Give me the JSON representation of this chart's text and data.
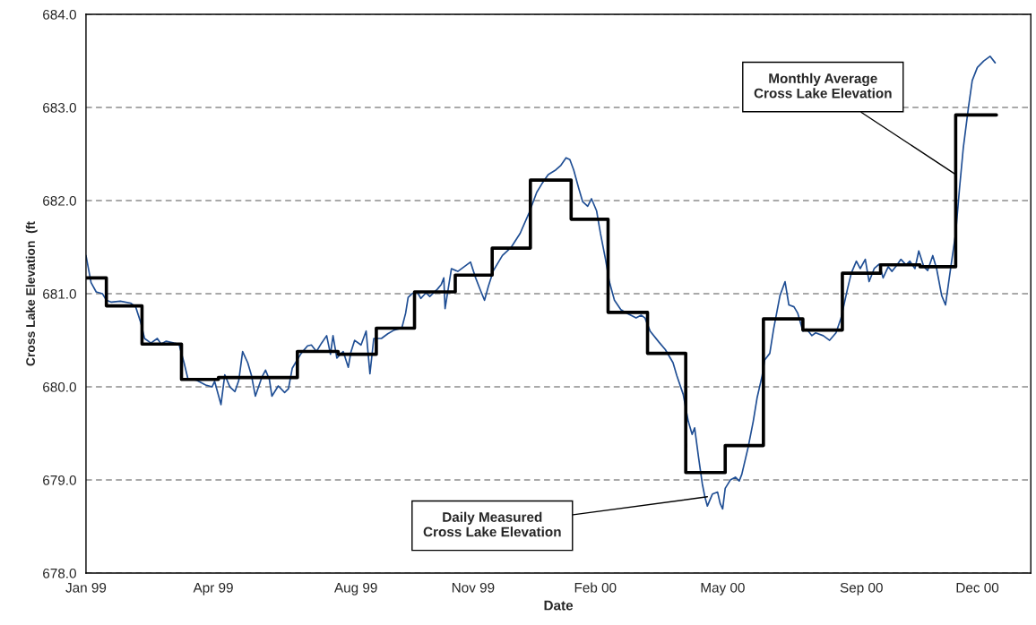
{
  "chart_data": {
    "type": "line",
    "xlabel": "Date",
    "ylabel": "Cross Lake Elevation  (ft",
    "xlim": [
      "1999-01-01",
      "2001-01-12"
    ],
    "ylim": [
      678.0,
      684.0
    ],
    "xticks": [
      {
        "value": "1999-01-01",
        "label": "Jan 99"
      },
      {
        "value": "1999-04-11",
        "label": "Apr 99"
      },
      {
        "value": "1999-08-01",
        "label": "Aug 99"
      },
      {
        "value": "1999-11-01",
        "label": "Nov 99"
      },
      {
        "value": "2000-02-05",
        "label": "Feb 00"
      },
      {
        "value": "2000-05-15",
        "label": "May 00"
      },
      {
        "value": "2000-09-01",
        "label": "Sep 00"
      },
      {
        "value": "2000-12-01",
        "label": "Dec 00"
      }
    ],
    "yticks": [
      {
        "value": 678,
        "label": "678.0"
      },
      {
        "value": 679,
        "label": "679.0"
      },
      {
        "value": 680,
        "label": "680.0"
      },
      {
        "value": 681,
        "label": "681.0"
      },
      {
        "value": 682,
        "label": "682.0"
      },
      {
        "value": 683,
        "label": "683.0"
      },
      {
        "value": 684,
        "label": "684.0"
      }
    ],
    "grid": "y",
    "legend": false,
    "marker": "none",
    "series": [
      {
        "color": "#1f4e94",
        "line_style": "solid",
        "x": [
          "1999-01-01",
          "1999-01-05",
          "1999-01-09",
          "1999-01-14",
          "1999-01-17",
          "1999-01-21",
          "1999-01-28",
          "1999-02-05",
          "1999-02-09",
          "1999-02-13",
          "1999-02-16",
          "1999-02-21",
          "1999-02-26",
          "1999-03-01",
          "1999-03-05",
          "1999-03-11",
          "1999-03-15",
          "1999-03-19",
          "1999-03-22",
          "1999-03-29",
          "1999-04-05",
          "1999-04-10",
          "1999-04-12",
          "1999-04-17",
          "1999-04-20",
          "1999-04-24",
          "1999-04-28",
          "1999-05-01",
          "1999-05-04",
          "1999-05-08",
          "1999-05-11",
          "1999-05-14",
          "1999-05-19",
          "1999-05-22",
          "1999-05-25",
          "1999-05-27",
          "1999-06-01",
          "1999-06-06",
          "1999-06-09",
          "1999-06-12",
          "1999-06-15",
          "1999-06-19",
          "1999-06-24",
          "1999-06-27",
          "1999-07-01",
          "1999-07-05",
          "1999-07-09",
          "1999-07-12",
          "1999-07-14",
          "1999-07-17",
          "1999-07-22",
          "1999-07-26",
          "1999-07-28",
          "1999-07-31",
          "1999-08-05",
          "1999-08-09",
          "1999-08-12",
          "1999-08-15",
          "1999-08-21",
          "1999-08-26",
          "1999-08-31",
          "1999-09-06",
          "1999-09-09",
          "1999-09-11",
          "1999-09-14",
          "1999-09-18",
          "1999-09-21",
          "1999-09-25",
          "1999-09-28",
          "1999-10-04",
          "1999-10-07",
          "1999-10-09",
          "1999-10-10",
          "1999-10-15",
          "1999-10-20",
          "1999-10-25",
          "1999-10-30",
          "1999-11-03",
          "1999-11-07",
          "1999-11-10",
          "1999-11-13",
          "1999-11-17",
          "1999-11-24",
          "1999-12-01",
          "1999-12-08",
          "1999-12-15",
          "1999-12-21",
          "1999-12-25",
          "1999-12-30",
          "2000-01-05",
          "2000-01-09",
          "2000-01-13",
          "2000-01-16",
          "2000-01-19",
          "2000-01-23",
          "2000-01-26",
          "2000-01-30",
          "2000-02-02",
          "2000-02-06",
          "2000-02-09",
          "2000-02-13",
          "2000-02-16",
          "2000-02-20",
          "2000-02-25",
          "2000-03-01",
          "2000-03-08",
          "2000-03-12",
          "2000-03-15",
          "2000-03-19",
          "2000-03-26",
          "2000-03-31",
          "2000-04-06",
          "2000-04-09",
          "2000-04-14",
          "2000-04-18",
          "2000-04-21",
          "2000-04-23",
          "2000-04-26",
          "2000-04-29",
          "2000-05-01",
          "2000-05-03",
          "2000-05-07",
          "2000-05-11",
          "2000-05-13",
          "2000-05-15",
          "2000-05-17",
          "2000-05-21",
          "2000-05-25",
          "2000-05-28",
          "2000-05-30",
          "2000-06-04",
          "2000-06-08",
          "2000-06-11",
          "2000-06-15",
          "2000-06-17",
          "2000-06-21",
          "2000-06-24",
          "2000-06-29",
          "2000-07-03",
          "2000-07-06",
          "2000-07-10",
          "2000-07-13",
          "2000-07-17",
          "2000-07-20",
          "2000-07-24",
          "2000-07-27",
          "2000-08-02",
          "2000-08-07",
          "2000-08-12",
          "2000-08-16",
          "2000-08-21",
          "2000-08-24",
          "2000-08-28",
          "2000-08-31",
          "2000-09-04",
          "2000-09-07",
          "2000-09-11",
          "2000-09-15",
          "2000-09-18",
          "2000-09-22",
          "2000-09-25",
          "2000-09-29",
          "2000-10-02",
          "2000-10-06",
          "2000-10-09",
          "2000-10-13",
          "2000-10-16",
          "2000-10-20",
          "2000-10-23",
          "2000-10-27",
          "2000-10-30",
          "2000-11-03",
          "2000-11-06",
          "2000-11-10",
          "2000-11-14",
          "2000-11-17",
          "2000-11-20",
          "2000-11-24",
          "2000-11-27",
          "2000-12-01",
          "2000-12-06",
          "2000-12-11",
          "2000-12-15"
        ],
        "values": [
          681.41,
          681.12,
          681.02,
          681.0,
          680.93,
          680.91,
          680.92,
          680.9,
          680.86,
          680.69,
          680.52,
          680.47,
          680.52,
          680.46,
          680.49,
          680.47,
          680.46,
          680.26,
          680.09,
          680.07,
          680.02,
          680.0,
          680.06,
          679.81,
          680.13,
          680.0,
          679.95,
          680.07,
          680.38,
          680.26,
          680.12,
          679.9,
          680.1,
          680.18,
          680.08,
          679.9,
          680.01,
          679.94,
          679.98,
          680.2,
          680.27,
          680.36,
          680.44,
          680.45,
          680.38,
          680.47,
          680.55,
          680.35,
          680.55,
          680.31,
          680.38,
          680.21,
          680.37,
          680.5,
          680.45,
          680.6,
          680.14,
          680.52,
          680.52,
          680.57,
          680.61,
          680.63,
          680.79,
          680.96,
          681.0,
          681.02,
          680.95,
          681.01,
          680.97,
          681.05,
          681.1,
          681.17,
          680.84,
          681.27,
          681.24,
          681.29,
          681.34,
          681.17,
          681.03,
          680.93,
          681.08,
          681.25,
          681.41,
          681.5,
          681.65,
          681.87,
          682.09,
          682.18,
          682.28,
          682.33,
          682.38,
          682.46,
          682.44,
          682.33,
          682.13,
          681.99,
          681.94,
          682.02,
          681.89,
          681.65,
          681.37,
          681.13,
          680.93,
          680.83,
          680.79,
          680.74,
          680.77,
          680.74,
          680.6,
          680.48,
          680.4,
          680.26,
          680.12,
          679.92,
          679.63,
          679.49,
          679.56,
          679.25,
          678.96,
          678.82,
          678.72,
          678.85,
          678.87,
          678.75,
          678.69,
          678.91,
          679.0,
          679.03,
          678.99,
          679.06,
          679.35,
          679.63,
          679.88,
          680.12,
          680.29,
          680.36,
          680.62,
          680.98,
          681.13,
          680.88,
          680.86,
          680.79,
          680.6,
          680.62,
          680.55,
          680.58,
          680.55,
          680.5,
          680.58,
          680.74,
          681.05,
          681.22,
          681.35,
          681.27,
          681.37,
          681.13,
          681.27,
          681.32,
          681.17,
          681.29,
          681.24,
          681.31,
          681.37,
          681.31,
          681.35,
          681.27,
          681.46,
          681.29,
          681.25,
          681.41,
          681.27,
          680.98,
          680.88,
          681.27,
          681.65,
          682.13,
          682.57,
          683.0,
          683.29,
          683.43,
          683.5,
          683.55,
          683.48
        ]
      },
      {
        "type": "step",
        "color": "#000000",
        "line_style": "solid",
        "x": [
          "1999-01-01",
          "1999-01-17",
          "1999-02-14",
          "1999-03-17",
          "1999-04-15",
          "1999-06-16",
          "1999-07-18",
          "1999-08-17",
          "1999-09-16",
          "1999-10-18",
          "1999-11-16",
          "1999-12-16",
          "2000-01-17",
          "2000-02-15",
          "2000-03-17",
          "2000-04-16",
          "2000-05-17",
          "2000-06-16",
          "2000-07-17",
          "2000-08-17",
          "2000-09-16",
          "2000-10-17",
          "2000-11-14",
          "2000-12-16"
        ],
        "values": [
          681.17,
          680.87,
          680.46,
          680.08,
          680.1,
          680.38,
          680.35,
          680.63,
          681.02,
          681.2,
          681.49,
          682.22,
          681.8,
          680.8,
          680.36,
          679.08,
          679.37,
          680.73,
          680.61,
          681.22,
          681.31,
          681.29,
          682.92,
          682.92
        ]
      }
    ],
    "annotations": [
      {
        "text": "Monthly Average\nCross Lake Elevation",
        "x": "2000-11-14",
        "y": 682.28
      },
      {
        "text": "Daily Measured\nCross Lake Elevation",
        "x": "2000-05-03",
        "y": 678.82
      }
    ]
  }
}
